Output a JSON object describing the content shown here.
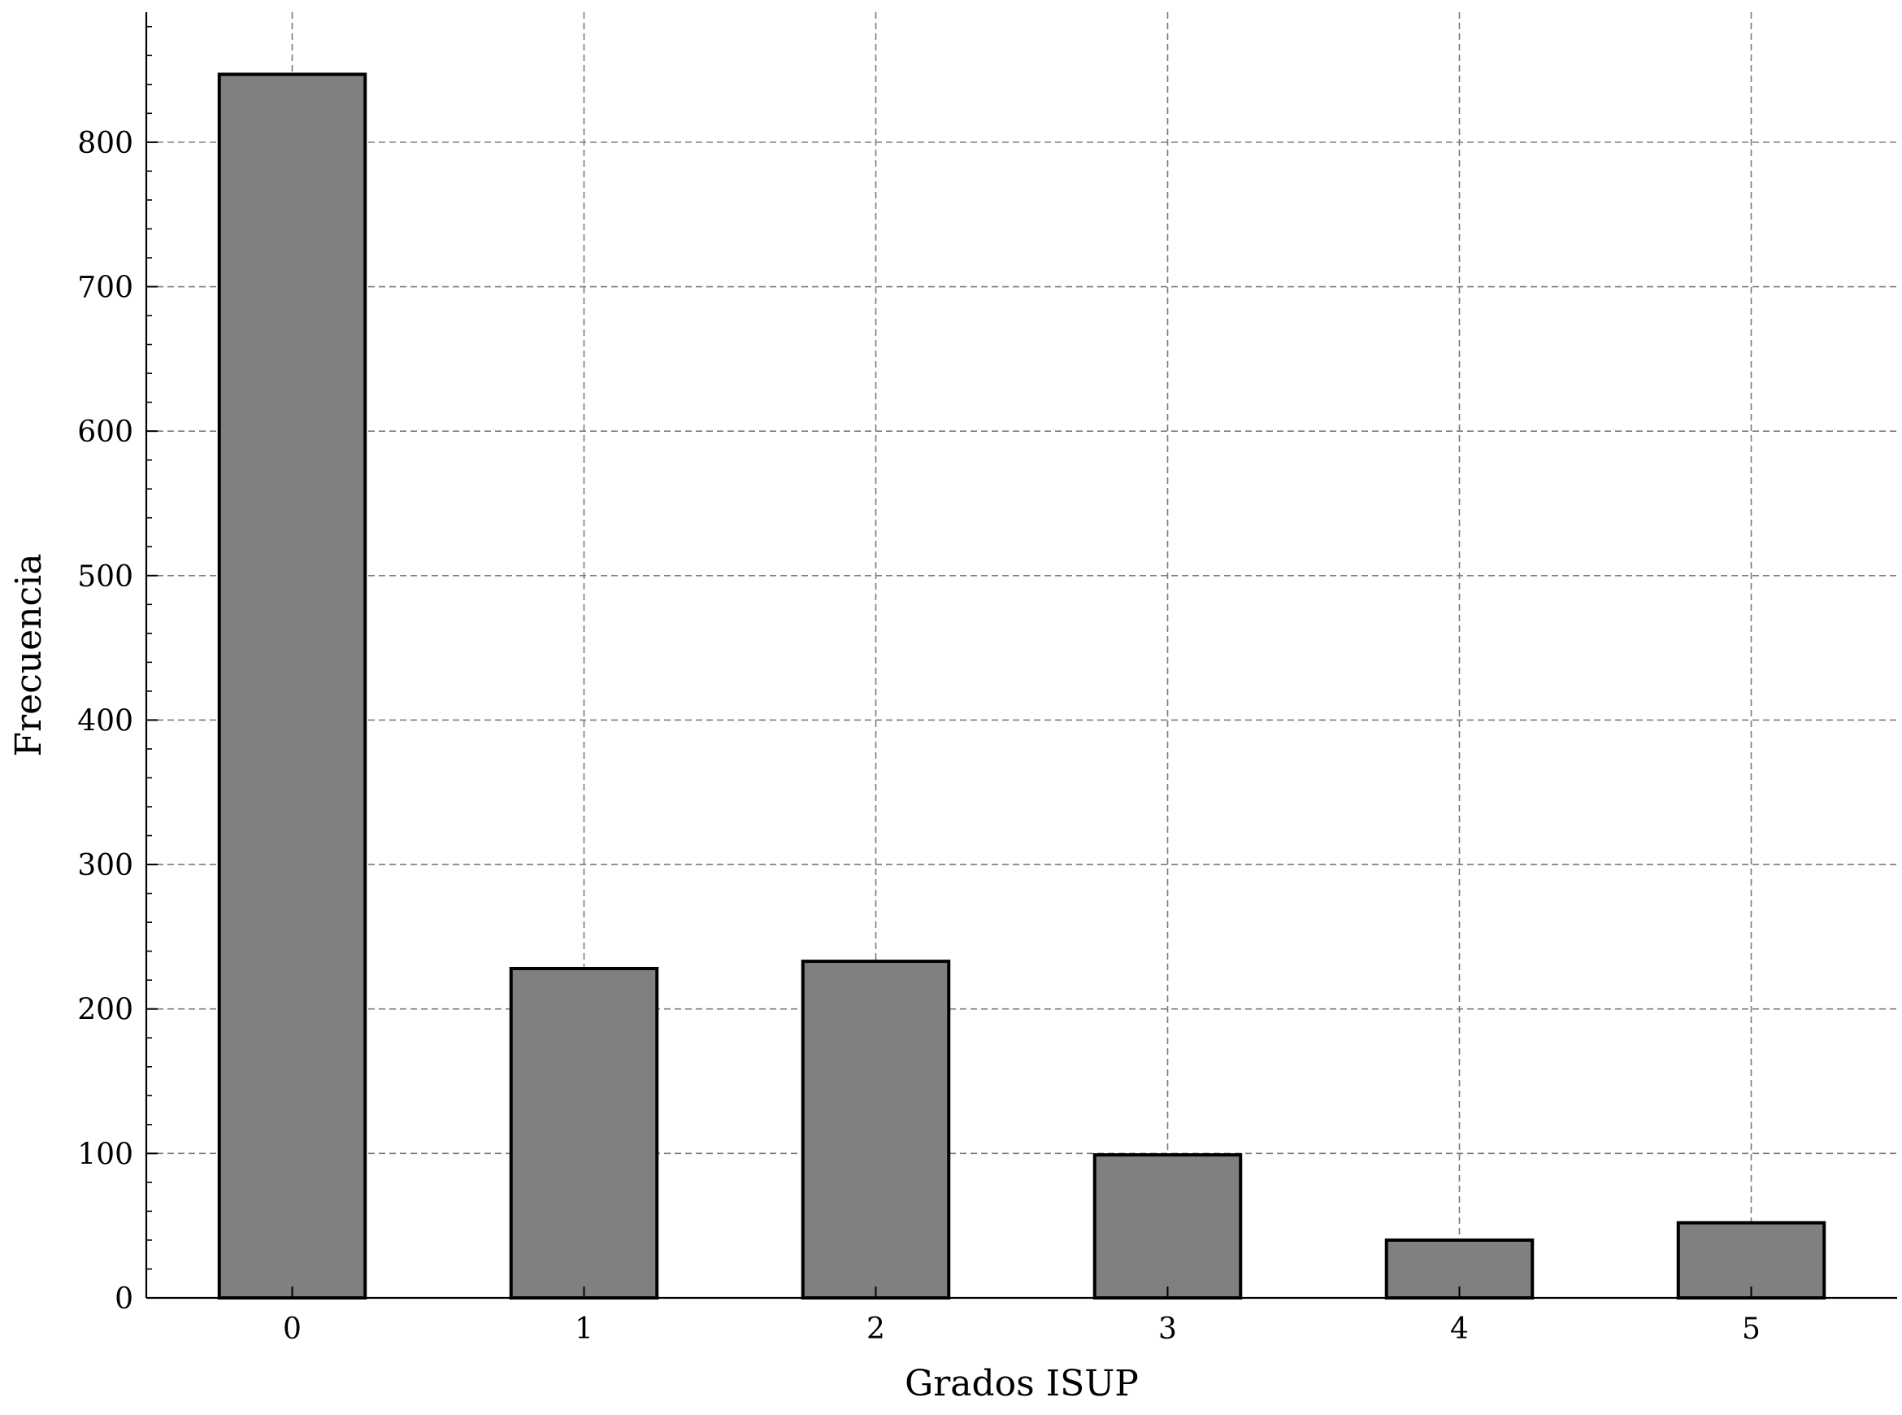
{
  "chart_data": {
    "type": "bar",
    "categories": [
      "0",
      "1",
      "2",
      "3",
      "4",
      "5"
    ],
    "values": [
      847,
      228,
      233,
      99,
      40,
      52
    ],
    "title": "",
    "xlabel": "Grados ISUP",
    "ylabel": "Frecuencia",
    "ylim": [
      0,
      890
    ],
    "yticks": [
      "0",
      "100",
      "200",
      "300",
      "400",
      "500",
      "600",
      "700",
      "800"
    ],
    "grid": true,
    "bar_color": "#808080",
    "edge_color": "#000000"
  }
}
